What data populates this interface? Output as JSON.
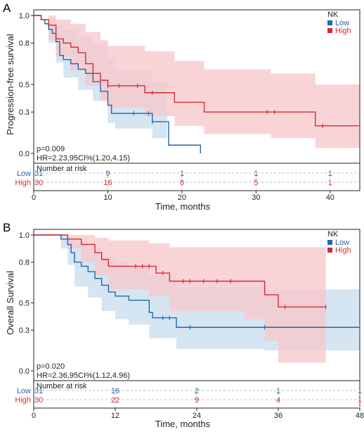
{
  "colors": {
    "low": "#2468a8",
    "high": "#d62b33",
    "low_band": "#c7dcee",
    "high_band": "#f7c5c9",
    "axis": "#222222"
  },
  "chart_data": [
    {
      "type": "line",
      "panel_label": "A",
      "ylabel": "Progression-free survival",
      "xlabel": "Time, months",
      "xlim": [
        0,
        44
      ],
      "ylim": [
        0,
        1.0
      ],
      "xticks": [
        0,
        10,
        20,
        30,
        40
      ],
      "yticks": [
        0.0,
        0.3,
        0.5,
        0.8,
        1.0
      ],
      "yticklabels": [
        "0.0",
        "0.3",
        "0.5",
        "0.8",
        "1.0"
      ],
      "legend": {
        "title": "NK",
        "position": "top-right",
        "entries": [
          "Low",
          "High"
        ]
      },
      "annotation": [
        "p=0.009",
        "HR=2.23,95CI%(1.20,4.15)"
      ],
      "risk_table": {
        "title": "Number at risk",
        "times": [
          0,
          10,
          20,
          30,
          40
        ],
        "rows": [
          {
            "label": "Low",
            "counts": [
              "31",
              "9",
              "1",
              "1",
              "1"
            ]
          },
          {
            "label": "High",
            "counts": [
              "30",
              "16",
              "8",
              "5",
              "1"
            ]
          }
        ]
      },
      "series": [
        {
          "name": "Low",
          "step": [
            [
              0,
              1.0
            ],
            [
              1,
              0.97
            ],
            [
              1.5,
              0.94
            ],
            [
              2,
              0.9
            ],
            [
              2.5,
              0.87
            ],
            [
              3,
              0.81
            ],
            [
              3.5,
              0.71
            ],
            [
              4,
              0.68
            ],
            [
              5,
              0.65
            ],
            [
              6,
              0.61
            ],
            [
              7,
              0.58
            ],
            [
              8,
              0.52
            ],
            [
              9,
              0.45
            ],
            [
              10,
              0.35
            ],
            [
              10.5,
              0.29
            ],
            [
              15,
              0.29
            ],
            [
              16,
              0.23
            ],
            [
              18,
              0.23
            ],
            [
              18.2,
              0.06
            ],
            [
              22.5,
              0.0
            ]
          ],
          "censor": [
            [
              13.5,
              0.29
            ],
            [
              15.5,
              0.29
            ],
            [
              16,
              0.23
            ]
          ],
          "band": [
            [
              0,
              1.0,
              1.0
            ],
            [
              2,
              0.98,
              0.8
            ],
            [
              3,
              0.93,
              0.66
            ],
            [
              4,
              0.9,
              0.55
            ],
            [
              6,
              0.85,
              0.46
            ],
            [
              8,
              0.79,
              0.38
            ],
            [
              10,
              0.69,
              0.22
            ],
            [
              11,
              0.6,
              0.18
            ],
            [
              16,
              0.52,
              0.11
            ],
            [
              18,
              0.5,
              0.05
            ]
          ]
        },
        {
          "name": "High",
          "step": [
            [
              0,
              1.0
            ],
            [
              1,
              0.97
            ],
            [
              2,
              0.93
            ],
            [
              3,
              0.83
            ],
            [
              4,
              0.8
            ],
            [
              5,
              0.77
            ],
            [
              6,
              0.73
            ],
            [
              7,
              0.65
            ],
            [
              8,
              0.58
            ],
            [
              9,
              0.53
            ],
            [
              10,
              0.49
            ],
            [
              14,
              0.49
            ],
            [
              15,
              0.44
            ],
            [
              18,
              0.44
            ],
            [
              19,
              0.37
            ],
            [
              23,
              0.3
            ],
            [
              25,
              0.3
            ],
            [
              32,
              0.3
            ],
            [
              38,
              0.2
            ],
            [
              44,
              0.2
            ]
          ],
          "censor": [
            [
              10,
              0.49
            ],
            [
              11.5,
              0.49
            ],
            [
              14,
              0.49
            ],
            [
              16,
              0.44
            ],
            [
              31.5,
              0.3
            ],
            [
              32.5,
              0.3
            ],
            [
              39,
              0.2
            ]
          ],
          "band": [
            [
              0,
              1.0,
              1.0
            ],
            [
              2,
              1.0,
              0.82
            ],
            [
              3,
              0.97,
              0.7
            ],
            [
              5,
              0.94,
              0.6
            ],
            [
              7,
              0.88,
              0.49
            ],
            [
              9,
              0.82,
              0.38
            ],
            [
              10,
              0.78,
              0.33
            ],
            [
              15,
              0.74,
              0.27
            ],
            [
              19,
              0.67,
              0.2
            ],
            [
              23,
              0.61,
              0.14
            ],
            [
              32,
              0.58,
              0.11
            ],
            [
              38,
              0.5,
              0.04
            ],
            [
              44,
              0.5,
              0.04
            ]
          ]
        }
      ]
    },
    {
      "type": "line",
      "panel_label": "B",
      "ylabel": "Overall Survival",
      "xlabel": "Time, months",
      "xlim": [
        0,
        48
      ],
      "ylim": [
        0,
        1.0
      ],
      "xticks": [
        0,
        12,
        24,
        36,
        48
      ],
      "yticks": [
        0.0,
        0.3,
        0.5,
        0.8,
        1.0
      ],
      "yticklabels": [
        "0.0",
        "0.3",
        "0.5",
        "0.8",
        "1.0"
      ],
      "legend": {
        "title": "NK",
        "position": "top-right",
        "entries": [
          "Low",
          "High"
        ]
      },
      "annotation": [
        "p=0.020",
        "HR=2.36,95CI%(1.12,4.96)"
      ],
      "risk_table": {
        "title": "Number at risk",
        "times": [
          0,
          12,
          24,
          36,
          48
        ],
        "rows": [
          {
            "label": "Low",
            "counts": [
              "31",
              "16",
              "2",
              "1",
              "1"
            ]
          },
          {
            "label": "High",
            "counts": [
              "30",
              "22",
              "9",
              "4",
              "1"
            ]
          }
        ]
      },
      "series": [
        {
          "name": "Low",
          "step": [
            [
              0,
              1.0
            ],
            [
              4,
              0.97
            ],
            [
              5,
              0.93
            ],
            [
              5.5,
              0.87
            ],
            [
              6,
              0.8
            ],
            [
              7,
              0.77
            ],
            [
              8,
              0.73
            ],
            [
              9,
              0.68
            ],
            [
              10,
              0.63
            ],
            [
              11,
              0.58
            ],
            [
              12,
              0.55
            ],
            [
              14,
              0.52
            ],
            [
              17,
              0.43
            ],
            [
              17.5,
              0.39
            ],
            [
              20,
              0.39
            ],
            [
              21,
              0.32
            ],
            [
              48,
              0.32
            ]
          ],
          "censor": [
            [
              19,
              0.39
            ],
            [
              20,
              0.39
            ],
            [
              23,
              0.32
            ],
            [
              34,
              0.32
            ],
            [
              48,
              0.32
            ]
          ],
          "band": [
            [
              0,
              1.0,
              1.0
            ],
            [
              4,
              1.0,
              0.9
            ],
            [
              5,
              0.98,
              0.78
            ],
            [
              6,
              0.95,
              0.62
            ],
            [
              8,
              0.9,
              0.54
            ],
            [
              10,
              0.84,
              0.44
            ],
            [
              12,
              0.8,
              0.38
            ],
            [
              14,
              0.77,
              0.34
            ],
            [
              17,
              0.7,
              0.24
            ],
            [
              21,
              0.62,
              0.16
            ],
            [
              34,
              0.6,
              0.15
            ],
            [
              48,
              0.6,
              0.15
            ]
          ]
        },
        {
          "name": "High",
          "step": [
            [
              0,
              1.0
            ],
            [
              5,
              0.97
            ],
            [
              7,
              0.93
            ],
            [
              9,
              0.87
            ],
            [
              10,
              0.82
            ],
            [
              11,
              0.77
            ],
            [
              17,
              0.77
            ],
            [
              18,
              0.72
            ],
            [
              20,
              0.66
            ],
            [
              31,
              0.66
            ],
            [
              34,
              0.56
            ],
            [
              36,
              0.47
            ],
            [
              43,
              0.47
            ]
          ],
          "censor": [
            [
              15,
              0.77
            ],
            [
              16,
              0.77
            ],
            [
              17,
              0.77
            ],
            [
              19,
              0.72
            ],
            [
              22,
              0.66
            ],
            [
              23,
              0.66
            ],
            [
              25,
              0.66
            ],
            [
              27,
              0.66
            ],
            [
              29,
              0.66
            ],
            [
              37,
              0.47
            ],
            [
              43,
              0.47
            ]
          ],
          "band": [
            [
              0,
              1.0,
              1.0
            ],
            [
              5,
              1.0,
              0.9
            ],
            [
              7,
              1.0,
              0.8
            ],
            [
              9,
              0.98,
              0.7
            ],
            [
              11,
              0.96,
              0.6
            ],
            [
              17,
              0.94,
              0.55
            ],
            [
              20,
              0.91,
              0.44
            ],
            [
              31,
              0.91,
              0.38
            ],
            [
              34,
              0.91,
              0.22
            ],
            [
              36,
              0.91,
              0.06
            ],
            [
              43,
              0.91,
              0.06
            ]
          ]
        }
      ]
    }
  ]
}
